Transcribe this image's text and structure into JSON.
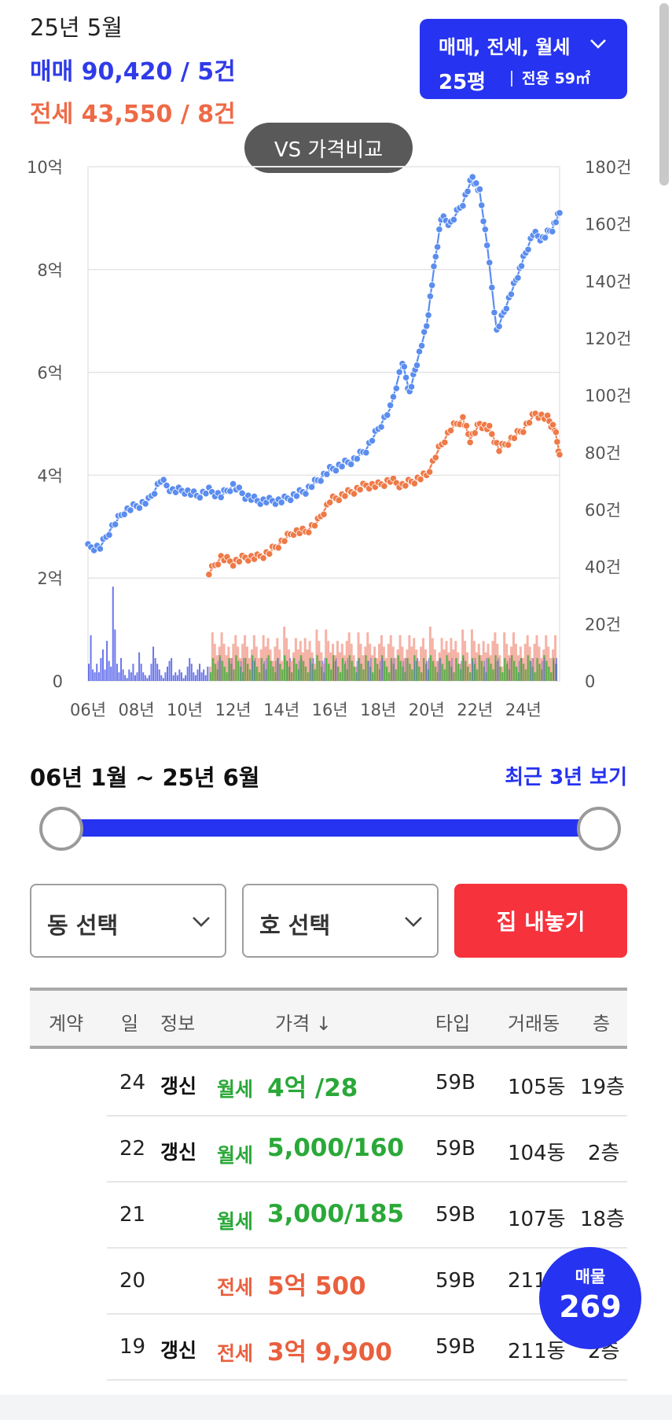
{
  "header": {
    "month": "25년 5월",
    "sale_summary": "매매 90,420 / 5건",
    "jeonse_summary": "전세 43,550 / 8건"
  },
  "type_selector": {
    "deal_types": "매매, 전세, 월세",
    "pyeong": "25평",
    "area": "전용 59㎡"
  },
  "vs_button": "VS 가격비교",
  "chart_data": {
    "type": "line",
    "x_ticks": [
      "06년",
      "08년",
      "10년",
      "12년",
      "14년",
      "16년",
      "18년",
      "20년",
      "22년",
      "24년"
    ],
    "y_left_ticks": [
      "0",
      "2억",
      "4억",
      "6억",
      "8억",
      "10억"
    ],
    "y_right_ticks": [
      "0",
      "20건",
      "40건",
      "60건",
      "80건",
      "100건",
      "120건",
      "140건",
      "160건",
      "180건"
    ],
    "ylim_left": [
      0,
      10
    ],
    "ylim_right": [
      0,
      180
    ],
    "xlim": [
      2006.0,
      2025.5
    ],
    "grid": true,
    "series": [
      {
        "kind": "price",
        "color": "#5b8def",
        "points": [
          [
            2006.0,
            2.6
          ],
          [
            2006.5,
            2.6
          ],
          [
            2007.0,
            3.0
          ],
          [
            2007.5,
            3.3
          ],
          [
            2008.0,
            3.4
          ],
          [
            2008.5,
            3.5
          ],
          [
            2009.0,
            3.9
          ],
          [
            2009.5,
            3.7
          ],
          [
            2010.0,
            3.7
          ],
          [
            2010.5,
            3.6
          ],
          [
            2011.0,
            3.7
          ],
          [
            2011.5,
            3.6
          ],
          [
            2012.0,
            3.8
          ],
          [
            2012.5,
            3.6
          ],
          [
            2013.0,
            3.5
          ],
          [
            2013.5,
            3.5
          ],
          [
            2014.0,
            3.5
          ],
          [
            2014.5,
            3.6
          ],
          [
            2015.0,
            3.7
          ],
          [
            2015.5,
            3.9
          ],
          [
            2016.0,
            4.1
          ],
          [
            2016.5,
            4.2
          ],
          [
            2017.0,
            4.3
          ],
          [
            2017.5,
            4.5
          ],
          [
            2018.0,
            4.9
          ],
          [
            2018.5,
            5.3
          ],
          [
            2019.0,
            6.2
          ],
          [
            2019.3,
            5.6
          ],
          [
            2019.6,
            6.2
          ],
          [
            2020.0,
            6.9
          ],
          [
            2020.3,
            8.0
          ],
          [
            2020.6,
            9.0
          ],
          [
            2021.0,
            8.9
          ],
          [
            2021.5,
            9.3
          ],
          [
            2021.9,
            9.8
          ],
          [
            2022.2,
            9.5
          ],
          [
            2022.5,
            8.5
          ],
          [
            2022.9,
            6.8
          ],
          [
            2023.3,
            7.3
          ],
          [
            2023.7,
            7.8
          ],
          [
            2024.0,
            8.2
          ],
          [
            2024.4,
            8.7
          ],
          [
            2024.8,
            8.6
          ],
          [
            2025.2,
            8.8
          ],
          [
            2025.5,
            9.1
          ]
        ]
      },
      {
        "kind": "price",
        "color": "#ee7a48",
        "points": [
          [
            2011.0,
            2.1
          ],
          [
            2011.5,
            2.4
          ],
          [
            2012.0,
            2.3
          ],
          [
            2012.5,
            2.4
          ],
          [
            2013.0,
            2.4
          ],
          [
            2013.5,
            2.5
          ],
          [
            2014.0,
            2.7
          ],
          [
            2014.5,
            2.9
          ],
          [
            2015.0,
            2.9
          ],
          [
            2015.5,
            3.1
          ],
          [
            2016.0,
            3.5
          ],
          [
            2016.5,
            3.6
          ],
          [
            2017.0,
            3.7
          ],
          [
            2017.5,
            3.8
          ],
          [
            2018.0,
            3.8
          ],
          [
            2018.5,
            3.9
          ],
          [
            2019.0,
            3.8
          ],
          [
            2019.5,
            3.9
          ],
          [
            2020.0,
            4.0
          ],
          [
            2020.5,
            4.5
          ],
          [
            2021.0,
            4.9
          ],
          [
            2021.5,
            5.1
          ],
          [
            2021.8,
            4.7
          ],
          [
            2022.2,
            5.0
          ],
          [
            2022.6,
            4.9
          ],
          [
            2023.0,
            4.5
          ],
          [
            2023.5,
            4.7
          ],
          [
            2024.0,
            4.9
          ],
          [
            2024.5,
            5.2
          ],
          [
            2025.0,
            5.1
          ],
          [
            2025.3,
            4.9
          ],
          [
            2025.5,
            4.4
          ]
        ]
      },
      {
        "kind": "volume",
        "color": "#3a48e6",
        "x_start": 2006.0,
        "x_end": 2011.0,
        "values": [
          6,
          16,
          4,
          3,
          6,
          3,
          8,
          11,
          4,
          14,
          7,
          5,
          33,
          18,
          6,
          3,
          8,
          4,
          2,
          1,
          4,
          3,
          6,
          2,
          3,
          10,
          6,
          3,
          2,
          1,
          2,
          6,
          12,
          8,
          6,
          4,
          2,
          1,
          3,
          5,
          7,
          8,
          2,
          3,
          2,
          4,
          3,
          1,
          2,
          5,
          8,
          6,
          3,
          2,
          4,
          6,
          3,
          4,
          2,
          5
        ]
      }
    ]
  },
  "period_label": "06년 1월 ~ 25년 6월",
  "recent_button": "최근 3년 보기",
  "dong_select": "동 선택",
  "ho_select": "호 선택",
  "list_button": "집 내놓기",
  "table": {
    "headers": [
      "계약",
      "일",
      "정보",
      "가격 ↓",
      "타입",
      "거래동",
      "층"
    ],
    "rows": [
      {
        "day": "24",
        "info": "갱신",
        "kind": "월세",
        "price": "4억 /28",
        "type": "59B",
        "dong": "105동",
        "floor": "19층",
        "color": "green"
      },
      {
        "day": "22",
        "info": "갱신",
        "kind": "월세",
        "price": "5,000/160",
        "type": "59B",
        "dong": "104동",
        "floor": "2층",
        "color": "green"
      },
      {
        "day": "21",
        "info": "",
        "kind": "월세",
        "price": "3,000/185",
        "type": "59B",
        "dong": "107동",
        "floor": "18층",
        "color": "green"
      },
      {
        "day": "20",
        "info": "",
        "kind": "전세",
        "price": "5억 500",
        "type": "59B",
        "dong": "211",
        "floor": "",
        "color": "orange"
      },
      {
        "day": "19",
        "info": "갱신",
        "kind": "전세",
        "price": "3억 9,900",
        "type": "59B",
        "dong": "211동",
        "floor": "2층",
        "color": "orange"
      }
    ]
  },
  "fab": {
    "label": "매물",
    "count": "269"
  }
}
